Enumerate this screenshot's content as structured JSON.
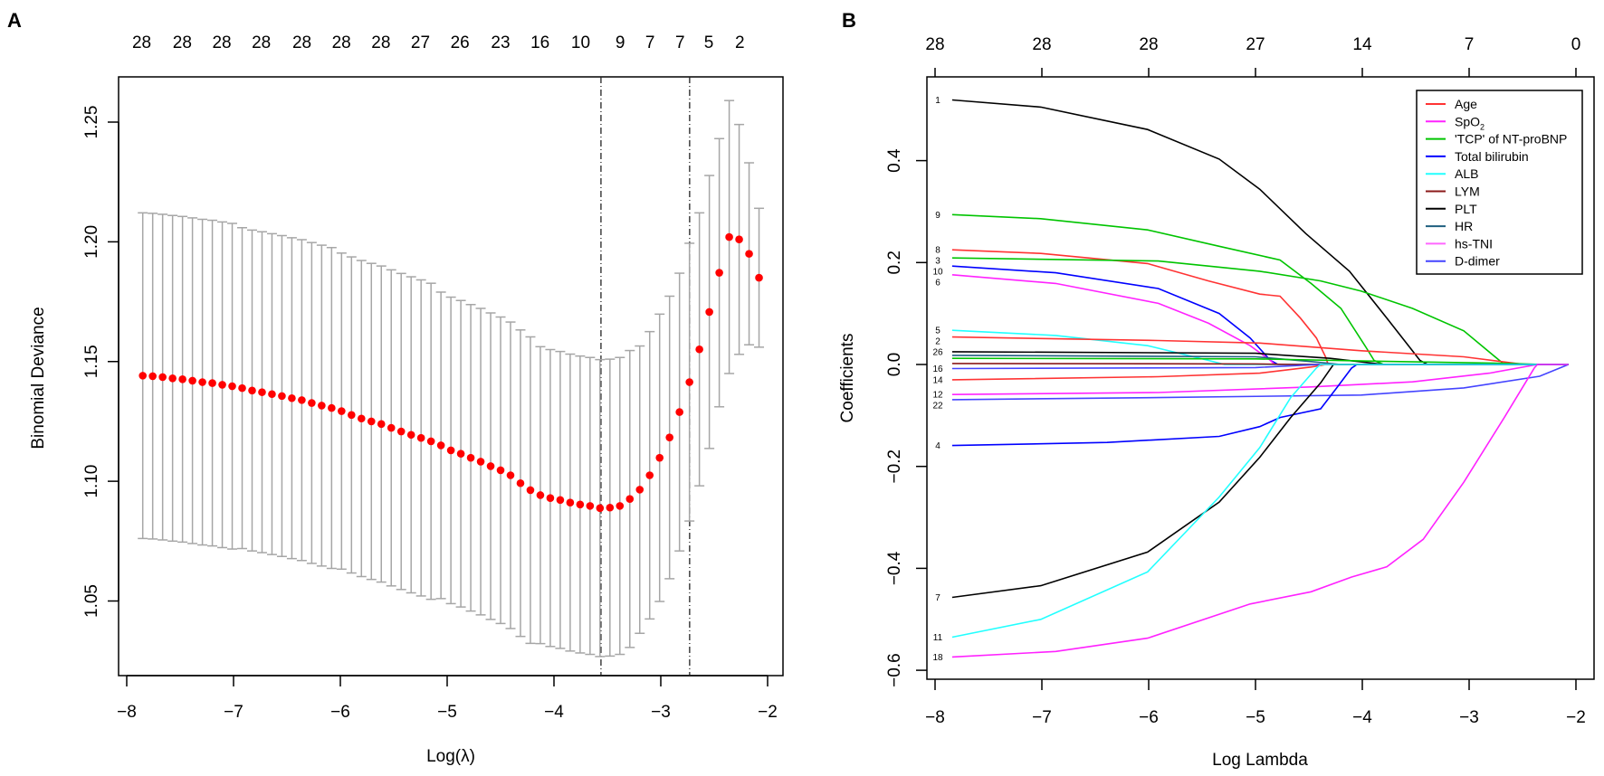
{
  "chart_data": [
    {
      "panel": "A",
      "type": "scatter",
      "xlabel": "Log(λ)",
      "ylabel": "Binomial Deviance",
      "xlim": [
        -8,
        -2
      ],
      "ylim": [
        1.025,
        1.265
      ],
      "xticks": [
        "−8",
        "−7",
        "−6",
        "−5",
        "−4",
        "−3",
        "−2"
      ],
      "xtick_values": [
        -8,
        -7,
        -6,
        -5,
        -4,
        -3,
        -2
      ],
      "yticks": [
        "1.05",
        "1.10",
        "1.15",
        "1.20",
        "1.25"
      ],
      "ytick_values": [
        1.05,
        1.1,
        1.15,
        1.2,
        1.25
      ],
      "top_axis": {
        "labels": [
          "28",
          "28",
          "28",
          "28",
          "28",
          "28",
          "28",
          "27",
          "26",
          "23",
          "16",
          "10",
          "9",
          "7",
          "7",
          "5",
          "2"
        ],
        "positions": [
          -7.86,
          -7.48,
          -7.11,
          -6.74,
          -6.36,
          -5.99,
          -5.62,
          -5.25,
          -4.88,
          -4.5,
          -4.13,
          -3.75,
          -3.38,
          -3.1,
          -2.82,
          -2.55,
          -2.26
        ]
      },
      "log_lambda_start": -7.85,
      "log_lambda_step": 0.09306,
      "mean": [
        1.1441,
        1.1439,
        1.1435,
        1.143,
        1.1426,
        1.142,
        1.1414,
        1.141,
        1.1403,
        1.1397,
        1.1389,
        1.1379,
        1.1372,
        1.1364,
        1.1356,
        1.1347,
        1.1339,
        1.1327,
        1.1316,
        1.1306,
        1.1293,
        1.1277,
        1.1262,
        1.125,
        1.1239,
        1.1223,
        1.1208,
        1.1194,
        1.1181,
        1.1167,
        1.115,
        1.1129,
        1.1115,
        1.1098,
        1.1082,
        1.1063,
        1.1046,
        1.1025,
        1.0992,
        1.0963,
        1.0942,
        1.093,
        1.0922,
        1.0911,
        1.0903,
        1.0897,
        1.0888,
        1.089,
        1.0897,
        1.0926,
        1.0965,
        1.1025,
        1.1098,
        1.1183,
        1.1289,
        1.1414,
        1.1551,
        1.1707,
        1.1871,
        1.202,
        1.201,
        1.195,
        1.185
      ],
      "se": [
        0.068,
        0.068,
        0.068,
        0.068,
        0.068,
        0.068,
        0.068,
        0.068,
        0.068,
        0.068,
        0.067,
        0.067,
        0.067,
        0.067,
        0.067,
        0.067,
        0.067,
        0.067,
        0.067,
        0.067,
        0.066,
        0.066,
        0.066,
        0.066,
        0.066,
        0.066,
        0.066,
        0.066,
        0.066,
        0.066,
        0.064,
        0.064,
        0.064,
        0.064,
        0.064,
        0.064,
        0.064,
        0.064,
        0.064,
        0.064,
        0.062,
        0.062,
        0.062,
        0.062,
        0.062,
        0.062,
        0.062,
        0.062,
        0.062,
        0.062,
        0.06,
        0.06,
        0.06,
        0.059,
        0.058,
        0.058,
        0.057,
        0.057,
        0.056,
        0.057,
        0.048,
        0.038,
        0.029
      ],
      "vlines": [
        -3.56,
        -2.73
      ],
      "colors": {
        "point": "#ff0000",
        "errorbar": "#a6a6a6",
        "vline": "#222222"
      }
    },
    {
      "panel": "B",
      "type": "line",
      "xlabel": "Log Lambda",
      "ylabel": "Coefficients",
      "xlim": [
        -8,
        -2
      ],
      "ylim": [
        -0.62,
        0.56
      ],
      "xticks": [
        "−8",
        "−7",
        "−6",
        "−5",
        "−4",
        "−3",
        "−2"
      ],
      "xtick_values": [
        -8,
        -7,
        -6,
        -5,
        -4,
        -3,
        -2
      ],
      "yticks": [
        "−0.6",
        "−0.4",
        "−0.2",
        "0.0",
        "0.2",
        "0.4"
      ],
      "ytick_values": [
        -0.6,
        -0.4,
        -0.2,
        0.0,
        0.2,
        0.4
      ],
      "top_axis": {
        "labels": [
          "28",
          "28",
          "28",
          "27",
          "14",
          "7",
          "0"
        ],
        "positions": [
          -8,
          -7,
          -6,
          -5,
          -4,
          -3,
          -2
        ]
      },
      "legend": {
        "placement": "top-right",
        "items": [
          {
            "label": "Age",
            "color": "#ff3333"
          },
          {
            "label": "SpO",
            "sub": "2",
            "color": "#ff22ff"
          },
          {
            "label": "'TCP' of NT-proBNP",
            "color": "#00c400"
          },
          {
            "label": "Total bilirubin",
            "color": "#0000ff"
          },
          {
            "label": "ALB",
            "color": "#22ffff"
          },
          {
            "label": "LYM",
            "color": "#8b1a1a"
          },
          {
            "label": "PLT",
            "color": "#000000"
          },
          {
            "label": "HR",
            "color": "#1f5f7f"
          },
          {
            "label": "hs-TNI",
            "color": "#ff66ff"
          },
          {
            "label": "D-dimer",
            "color": "#4444ff"
          }
        ]
      },
      "series": [
        {
          "label": "1",
          "color": "#000000",
          "points": [
            [
              -7.84,
              0.519
            ],
            [
              -7.01,
              0.505
            ],
            [
              -6.01,
              0.461
            ],
            [
              -5.34,
              0.403
            ],
            [
              -4.96,
              0.344
            ],
            [
              -4.53,
              0.257
            ],
            [
              -4.12,
              0.183
            ],
            [
              -3.77,
              0.091
            ],
            [
              -3.46,
              0.008
            ],
            [
              -3.39,
              0
            ],
            [
              -2.07,
              0
            ]
          ]
        },
        {
          "label": "9",
          "color": "#00c400",
          "points": [
            [
              -7.84,
              0.294
            ],
            [
              -7.01,
              0.286
            ],
            [
              -6.01,
              0.264
            ],
            [
              -5.34,
              0.232
            ],
            [
              -4.77,
              0.205
            ],
            [
              -4.48,
              0.159
            ],
            [
              -4.2,
              0.11
            ],
            [
              -3.96,
              0.032
            ],
            [
              -3.89,
              0.008
            ],
            [
              -3.8,
              0
            ],
            [
              -2.07,
              0
            ]
          ]
        },
        {
          "label": "8",
          "color": "#ff3333",
          "points": [
            [
              -7.84,
              0.225
            ],
            [
              -7.01,
              0.218
            ],
            [
              -6.01,
              0.198
            ],
            [
              -5.44,
              0.164
            ],
            [
              -4.96,
              0.138
            ],
            [
              -4.77,
              0.134
            ],
            [
              -4.58,
              0.091
            ],
            [
              -4.43,
              0.052
            ],
            [
              -4.34,
              0.013
            ],
            [
              -4.32,
              0
            ],
            [
              -2.07,
              0
            ]
          ]
        },
        {
          "label": "3",
          "color": "#00c400",
          "points": [
            [
              -7.84,
              0.209
            ],
            [
              -5.91,
              0.203
            ],
            [
              -4.96,
              0.183
            ],
            [
              -4.39,
              0.164
            ],
            [
              -4.01,
              0.144
            ],
            [
              -3.53,
              0.11
            ],
            [
              -3.05,
              0.066
            ],
            [
              -2.67,
              0
            ],
            [
              -2.07,
              0
            ]
          ]
        },
        {
          "label": "10",
          "color": "#0000ff",
          "points": [
            [
              -7.84,
              0.193
            ],
            [
              -6.87,
              0.18
            ],
            [
              -5.91,
              0.149
            ],
            [
              -5.34,
              0.1
            ],
            [
              -5.05,
              0.052
            ],
            [
              -4.86,
              0.008
            ],
            [
              -4.79,
              0
            ],
            [
              -2.07,
              0
            ]
          ]
        },
        {
          "label": "6",
          "color": "#ff22ff",
          "points": [
            [
              -7.84,
              0.176
            ],
            [
              -6.87,
              0.159
            ],
            [
              -5.91,
              0.12
            ],
            [
              -5.44,
              0.081
            ],
            [
              -5.05,
              0.037
            ],
            [
              -4.86,
              0.008
            ],
            [
              -4.82,
              0
            ],
            [
              -2.07,
              0
            ]
          ]
        },
        {
          "label": "5",
          "color": "#22ffff",
          "points": [
            [
              -7.84,
              0.067
            ],
            [
              -6.87,
              0.057
            ],
            [
              -6.01,
              0.037
            ],
            [
              -5.44,
              0.008
            ],
            [
              -5.29,
              0
            ],
            [
              -2.07,
              0
            ]
          ]
        },
        {
          "label": "2",
          "color": "#ff3333",
          "points": [
            [
              -7.84,
              0.054
            ],
            [
              -5.91,
              0.047
            ],
            [
              -4.96,
              0.042
            ],
            [
              -4.01,
              0.027
            ],
            [
              -3.05,
              0.015
            ],
            [
              -2.48,
              0
            ],
            [
              -2.07,
              0
            ]
          ]
        },
        {
          "label": "26",
          "color": "#000000",
          "points": [
            [
              -7.84,
              0.025
            ],
            [
              -5.0,
              0.022
            ],
            [
              -4.3,
              0.012
            ],
            [
              -3.8,
              0
            ],
            [
              -2.07,
              0
            ]
          ]
        },
        {
          "label": "",
          "color": "#1f5f7f",
          "points": [
            [
              -7.84,
              0.018
            ],
            [
              -5.0,
              0.015
            ],
            [
              -4.5,
              0.006
            ],
            [
              -4.2,
              0
            ],
            [
              -2.07,
              0
            ]
          ]
        },
        {
          "label": "",
          "color": "#00c400",
          "points": [
            [
              -7.84,
              0.012
            ],
            [
              -5.0,
              0.011
            ],
            [
              -4.0,
              0.007
            ],
            [
              -2.6,
              0.002
            ],
            [
              -2.3,
              0
            ],
            [
              -2.07,
              0
            ]
          ]
        },
        {
          "label": "",
          "color": "#8b1a1a",
          "points": [
            [
              -7.84,
              0.002
            ],
            [
              -5.0,
              0.001
            ],
            [
              -4.6,
              0
            ],
            [
              -2.07,
              0
            ]
          ]
        },
        {
          "label": "16",
          "color": "#4444ff",
          "points": [
            [
              -7.84,
              -0.008
            ],
            [
              -5.0,
              -0.006
            ],
            [
              -4.4,
              0
            ],
            [
              -2.07,
              0
            ]
          ]
        },
        {
          "label": "14",
          "color": "#ff3333",
          "points": [
            [
              -7.84,
              -0.03
            ],
            [
              -5.91,
              -0.024
            ],
            [
              -4.96,
              -0.017
            ],
            [
              -4.48,
              -0.005
            ],
            [
              -4.34,
              0
            ],
            [
              -2.07,
              0
            ]
          ]
        },
        {
          "label": "12",
          "color": "#ff22ff",
          "points": [
            [
              -7.84,
              -0.059
            ],
            [
              -5.91,
              -0.055
            ],
            [
              -4.48,
              -0.044
            ],
            [
              -3.53,
              -0.034
            ],
            [
              -2.81,
              -0.017
            ],
            [
              -2.36,
              0
            ],
            [
              -2.07,
              0
            ]
          ]
        },
        {
          "label": "22",
          "color": "#4444ff",
          "points": [
            [
              -7.84,
              -0.069
            ],
            [
              -5.91,
              -0.065
            ],
            [
              -4.01,
              -0.06
            ],
            [
              -3.05,
              -0.046
            ],
            [
              -2.34,
              -0.023
            ],
            [
              -2.07,
              0
            ]
          ]
        },
        {
          "label": "4",
          "color": "#0000ff",
          "points": [
            [
              -7.84,
              -0.159
            ],
            [
              -6.39,
              -0.153
            ],
            [
              -5.34,
              -0.141
            ],
            [
              -4.96,
              -0.122
            ],
            [
              -4.77,
              -0.104
            ],
            [
              -4.39,
              -0.087
            ],
            [
              -4.24,
              -0.046
            ],
            [
              -4.1,
              -0.007
            ],
            [
              -4.05,
              0
            ],
            [
              -2.07,
              0
            ]
          ]
        },
        {
          "label": "7",
          "color": "#000000",
          "points": [
            [
              -7.84,
              -0.457
            ],
            [
              -7.01,
              -0.434
            ],
            [
              -6.01,
              -0.368
            ],
            [
              -5.34,
              -0.27
            ],
            [
              -4.96,
              -0.182
            ],
            [
              -4.67,
              -0.104
            ],
            [
              -4.39,
              -0.036
            ],
            [
              -4.27,
              0
            ],
            [
              -2.07,
              0
            ]
          ]
        },
        {
          "label": "11",
          "color": "#22ffff",
          "points": [
            [
              -7.84,
              -0.535
            ],
            [
              -7.01,
              -0.5
            ],
            [
              -6.01,
              -0.407
            ],
            [
              -5.34,
              -0.26
            ],
            [
              -4.96,
              -0.163
            ],
            [
              -4.67,
              -0.065
            ],
            [
              -4.43,
              -0.007
            ],
            [
              -4.39,
              0
            ],
            [
              -2.07,
              0
            ]
          ]
        },
        {
          "label": "18",
          "color": "#ff22ff",
          "points": [
            [
              -7.84,
              -0.574
            ],
            [
              -6.87,
              -0.563
            ],
            [
              -6.01,
              -0.537
            ],
            [
              -5.05,
              -0.47
            ],
            [
              -4.48,
              -0.446
            ],
            [
              -4.1,
              -0.417
            ],
            [
              -3.77,
              -0.397
            ],
            [
              -3.43,
              -0.343
            ],
            [
              -3.05,
              -0.231
            ],
            [
              -2.67,
              -0.104
            ],
            [
              -2.39,
              -0.007
            ],
            [
              -2.36,
              0
            ],
            [
              -2.07,
              0
            ]
          ]
        }
      ]
    }
  ]
}
